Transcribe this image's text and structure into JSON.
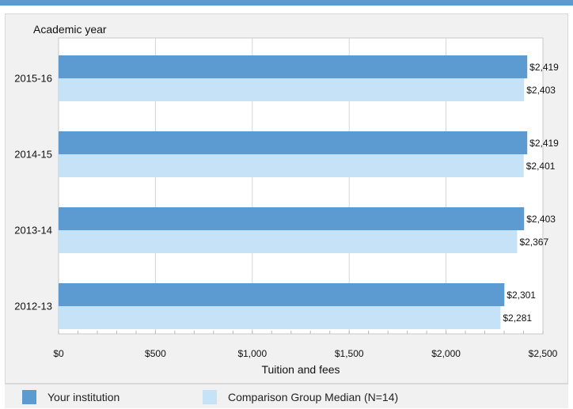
{
  "chart_data": {
    "type": "bar",
    "orientation": "horizontal",
    "categories": [
      "2015-16",
      "2014-15",
      "2013-14",
      "2012-13"
    ],
    "category_axis_title": "Academic year",
    "xlabel": "Tuition and fees",
    "xlim": [
      0,
      2500
    ],
    "x_ticks": [
      0,
      500,
      1000,
      1500,
      2000,
      2500
    ],
    "x_tick_labels": [
      "$0",
      "$500",
      "$1,000",
      "$1,500",
      "$2,000",
      "$2,500"
    ],
    "grid": true,
    "legend_position": "bottom",
    "series": [
      {
        "name": "Your institution",
        "color": "#5b9bd1",
        "values": [
          2419,
          2419,
          2403,
          2301
        ],
        "value_labels": [
          "$2,419",
          "$2,419",
          "$2,403",
          "$2,301"
        ]
      },
      {
        "name": "Comparison Group Median (N=14)",
        "color": "#c6e2f7",
        "values": [
          2403,
          2401,
          2367,
          2281
        ],
        "value_labels": [
          "$2,403",
          "$2,401",
          "$2,367",
          "$2,281"
        ]
      }
    ]
  }
}
